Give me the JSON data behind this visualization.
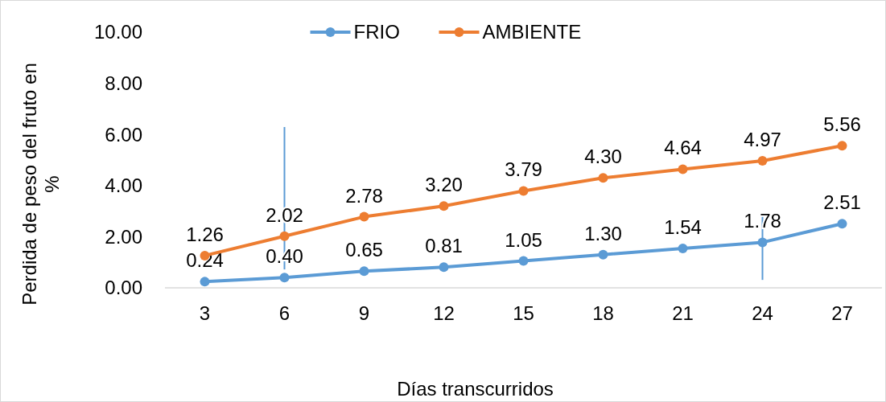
{
  "chart_data": {
    "type": "line",
    "xlabel": "Días transcurridos",
    "ylabel": "Perdida de peso del fruto en %",
    "categories": [
      "3",
      "6",
      "9",
      "12",
      "15",
      "18",
      "21",
      "24",
      "27"
    ],
    "series": [
      {
        "name": "FRIO",
        "color": "#5b9bd5",
        "values": [
          0.24,
          0.4,
          0.65,
          0.81,
          1.05,
          1.3,
          1.54,
          1.78,
          2.51
        ],
        "value_labels": [
          "0.24",
          "0.40",
          "0.65",
          "0.81",
          "1.05",
          "1.30",
          "1.54",
          "1.78",
          "2.51"
        ],
        "errors": [
          null,
          [
            0.72,
            6.29
          ],
          null,
          null,
          null,
          null,
          null,
          [
            0.31,
            2.92
          ],
          null
        ]
      },
      {
        "name": "AMBIENTE",
        "color": "#ed7d31",
        "values": [
          1.26,
          2.02,
          2.78,
          3.2,
          3.79,
          4.3,
          4.64,
          4.97,
          5.56
        ],
        "value_labels": [
          "1.26",
          "2.02",
          "2.78",
          "3.20",
          "3.79",
          "4.30",
          "4.64",
          "4.97",
          "5.56"
        ]
      }
    ],
    "ylim": [
      0,
      10
    ],
    "yticks": [
      {
        "value": 0,
        "label": "0.00"
      },
      {
        "value": 2,
        "label": "2.00"
      },
      {
        "value": 4,
        "label": "4.00"
      },
      {
        "value": 6,
        "label": "6.00"
      },
      {
        "value": 8,
        "label": "8.00"
      },
      {
        "value": 10,
        "label": "10.00"
      }
    ],
    "legend": "top",
    "marker": "circle",
    "grid": false
  }
}
